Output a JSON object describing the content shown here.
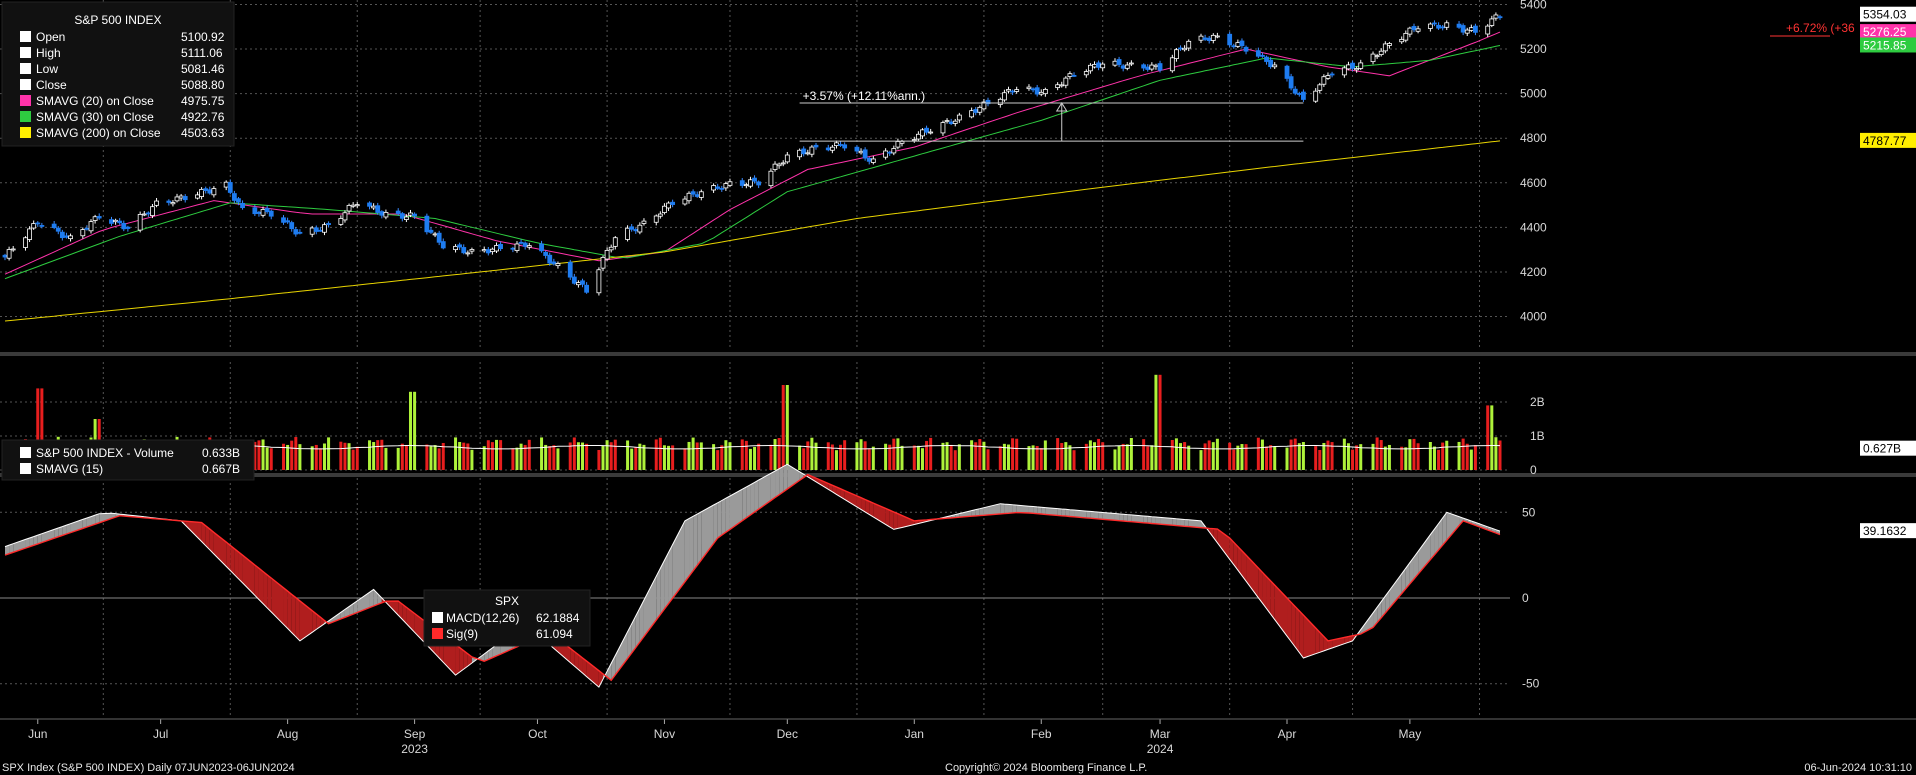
{
  "chart_data": {
    "type": "line",
    "title": "S&P 500 INDEX",
    "x_months": [
      "Jun",
      "Jul",
      "Aug",
      "Sep",
      "Oct",
      "Nov",
      "Dec",
      "Jan",
      "Feb",
      "Mar",
      "Apr",
      "May"
    ],
    "x_years": [
      "2023",
      "2024"
    ],
    "x_range": [
      "2023-06-07",
      "2024-06-06"
    ],
    "grid": true,
    "legend_position": "top-left",
    "price_panel": {
      "ylim": [
        3850,
        5420
      ],
      "yticks": [
        "4000",
        "4200",
        "4400",
        "4600",
        "4800",
        "5000",
        "5200",
        "5400"
      ],
      "legend": [
        {
          "label": "Open",
          "value": "5100.92",
          "color": "#ffffff"
        },
        {
          "label": "High",
          "value": "5111.06",
          "color": "#ffffff"
        },
        {
          "label": "Low",
          "value": "5081.46",
          "color": "#ffffff"
        },
        {
          "label": "Close",
          "value": "5088.80",
          "color": "#ffffff"
        },
        {
          "label": "SMAVG (20)  on Close",
          "value": "4975.75",
          "color": "#ff33aa"
        },
        {
          "label": "SMAVG (30)  on Close",
          "value": "4922.76",
          "color": "#2ecc40"
        },
        {
          "label": "SMAVG (200)  on Close",
          "value": "4503.63",
          "color": "#ffee00"
        }
      ],
      "last_labels": [
        {
          "value": "5354.03",
          "color": "#ffffff",
          "text_color": "#000000"
        },
        {
          "value": "5276.25",
          "color": "#ff33aa",
          "text_color": "#ffffff"
        },
        {
          "value": "5215.85",
          "color": "#2ecc40",
          "text_color": "#ffffff"
        },
        {
          "value": "4787.77",
          "color": "#ffee00",
          "text_color": "#000000"
        }
      ],
      "annotation": "+3.57% (+12.11%ann.)",
      "annotation_top_right": "+6.72% (+36",
      "series": [
        {
          "name": "Close",
          "points": [
            [
              "2023-06-07",
              4267
            ],
            [
              "2023-06-15",
              4426
            ],
            [
              "2023-06-23",
              4348
            ],
            [
              "2023-06-30",
              4450
            ],
            [
              "2023-07-07",
              4399
            ],
            [
              "2023-07-14",
              4505
            ],
            [
              "2023-07-21",
              4536
            ],
            [
              "2023-07-31",
              4589
            ],
            [
              "2023-08-04",
              4478
            ],
            [
              "2023-08-11",
              4464
            ],
            [
              "2023-08-18",
              4370
            ],
            [
              "2023-08-25",
              4406
            ],
            [
              "2023-09-01",
              4516
            ],
            [
              "2023-09-08",
              4457
            ],
            [
              "2023-09-15",
              4450
            ],
            [
              "2023-09-22",
              4320
            ],
            [
              "2023-09-29",
              4288
            ],
            [
              "2023-10-06",
              4308
            ],
            [
              "2023-10-13",
              4327
            ],
            [
              "2023-10-20",
              4224
            ],
            [
              "2023-10-27",
              4117
            ],
            [
              "2023-11-03",
              4358
            ],
            [
              "2023-11-10",
              4415
            ],
            [
              "2023-11-17",
              4514
            ],
            [
              "2023-11-24",
              4559
            ],
            [
              "2023-12-01",
              4594
            ],
            [
              "2023-12-08",
              4604
            ],
            [
              "2023-12-15",
              4719
            ],
            [
              "2023-12-22",
              4754
            ],
            [
              "2023-12-29",
              4770
            ],
            [
              "2024-01-05",
              4697
            ],
            [
              "2024-01-12",
              4784
            ],
            [
              "2024-01-19",
              4840
            ],
            [
              "2024-01-26",
              4891
            ],
            [
              "2024-02-02",
              4958
            ],
            [
              "2024-02-09",
              5027
            ],
            [
              "2024-02-16",
              5005
            ],
            [
              "2024-02-23",
              5089
            ],
            [
              "2024-03-01",
              5137
            ],
            [
              "2024-03-08",
              5124
            ],
            [
              "2024-03-15",
              5117
            ],
            [
              "2024-03-22",
              5234
            ],
            [
              "2024-03-28",
              5254
            ],
            [
              "2024-04-05",
              5204
            ],
            [
              "2024-04-12",
              5123
            ],
            [
              "2024-04-19",
              4967
            ],
            [
              "2024-04-26",
              5100
            ],
            [
              "2024-05-03",
              5128
            ],
            [
              "2024-05-10",
              5223
            ],
            [
              "2024-05-17",
              5303
            ],
            [
              "2024-05-24",
              5305
            ],
            [
              "2024-05-31",
              5278
            ],
            [
              "2024-06-06",
              5354
            ]
          ]
        },
        {
          "name": "SMAVG (20)",
          "points": [
            [
              "2023-06-07",
              4190
            ],
            [
              "2023-07-01",
              4390
            ],
            [
              "2023-07-28",
              4520
            ],
            [
              "2023-08-20",
              4460
            ],
            [
              "2023-09-12",
              4460
            ],
            [
              "2023-10-05",
              4340
            ],
            [
              "2023-10-30",
              4250
            ],
            [
              "2023-11-15",
              4290
            ],
            [
              "2023-12-01",
              4480
            ],
            [
              "2023-12-20",
              4660
            ],
            [
              "2024-01-15",
              4760
            ],
            [
              "2024-02-10",
              4920
            ],
            [
              "2024-03-10",
              5080
            ],
            [
              "2024-04-05",
              5200
            ],
            [
              "2024-04-25",
              5120
            ],
            [
              "2024-05-10",
              5080
            ],
            [
              "2024-05-31",
              5230
            ],
            [
              "2024-06-06",
              5276
            ]
          ]
        },
        {
          "name": "SMAVG (30)",
          "points": [
            [
              "2023-06-07",
              4170
            ],
            [
              "2023-07-05",
              4360
            ],
            [
              "2023-08-01",
              4510
            ],
            [
              "2023-08-25",
              4480
            ],
            [
              "2023-09-20",
              4440
            ],
            [
              "2023-10-15",
              4330
            ],
            [
              "2023-11-05",
              4260
            ],
            [
              "2023-11-25",
              4330
            ],
            [
              "2023-12-15",
              4560
            ],
            [
              "2024-01-15",
              4720
            ],
            [
              "2024-02-15",
              4880
            ],
            [
              "2024-03-15",
              5060
            ],
            [
              "2024-04-10",
              5160
            ],
            [
              "2024-05-01",
              5120
            ],
            [
              "2024-05-20",
              5150
            ],
            [
              "2024-06-06",
              5216
            ]
          ]
        },
        {
          "name": "SMAVG (200)",
          "points": [
            [
              "2023-06-07",
              3980
            ],
            [
              "2023-08-01",
              4080
            ],
            [
              "2023-10-01",
              4200
            ],
            [
              "2023-11-15",
              4290
            ],
            [
              "2024-01-01",
              4440
            ],
            [
              "2024-03-01",
              4580
            ],
            [
              "2024-04-15",
              4680
            ],
            [
              "2024-06-06",
              4788
            ]
          ]
        }
      ]
    },
    "volume_panel": {
      "legend": [
        {
          "label": "S&P 500 INDEX - Volume",
          "value": "0.633B",
          "color": "#ffffff"
        },
        {
          "label": "SMAVG (15)",
          "value": "0.667B",
          "color": "#ffffff"
        }
      ],
      "yticks": [
        "0",
        "1B",
        "2B"
      ],
      "last_label": "0.627B",
      "spikes": [
        [
          "2023-06-16",
          2.4
        ],
        [
          "2023-06-30",
          1.5
        ],
        [
          "2023-09-15",
          2.3
        ],
        [
          "2023-12-15",
          2.5
        ],
        [
          "2024-03-15",
          2.8
        ],
        [
          "2024-06-03",
          1.9
        ]
      ]
    },
    "macd_panel": {
      "legend_title": "SPX",
      "legend": [
        {
          "label": "MACD(12,26)",
          "value": "62.1884",
          "color": "#ffffff"
        },
        {
          "label": "Sig(9)",
          "value": "61.094",
          "color": "#ff2a2a"
        }
      ],
      "yticks": [
        "-50",
        "0",
        "50"
      ],
      "last_label": "39.1632",
      "macd_points": [
        [
          "2023-06-07",
          30
        ],
        [
          "2023-07-01",
          50
        ],
        [
          "2023-07-20",
          45
        ],
        [
          "2023-08-18",
          -25
        ],
        [
          "2023-09-05",
          5
        ],
        [
          "2023-09-25",
          -45
        ],
        [
          "2023-10-12",
          -15
        ],
        [
          "2023-10-30",
          -52
        ],
        [
          "2023-11-20",
          45
        ],
        [
          "2023-12-15",
          78
        ],
        [
          "2024-01-10",
          40
        ],
        [
          "2024-02-05",
          55
        ],
        [
          "2024-03-25",
          45
        ],
        [
          "2024-04-19",
          -35
        ],
        [
          "2024-05-01",
          -25
        ],
        [
          "2024-05-24",
          50
        ],
        [
          "2024-06-06",
          39
        ]
      ],
      "signal_points": [
        [
          "2023-06-07",
          25
        ],
        [
          "2023-07-05",
          48
        ],
        [
          "2023-07-25",
          44
        ],
        [
          "2023-08-25",
          -15
        ],
        [
          "2023-09-10",
          0
        ],
        [
          "2023-10-01",
          -38
        ],
        [
          "2023-10-18",
          -20
        ],
        [
          "2023-11-02",
          -48
        ],
        [
          "2023-11-28",
          35
        ],
        [
          "2023-12-20",
          72
        ],
        [
          "2024-01-15",
          45
        ],
        [
          "2024-02-10",
          50
        ],
        [
          "2024-03-30",
          40
        ],
        [
          "2024-04-25",
          -25
        ],
        [
          "2024-05-05",
          -20
        ],
        [
          "2024-05-28",
          45
        ],
        [
          "2024-06-06",
          37
        ]
      ]
    },
    "footer": {
      "left": "SPX Index (S&P 500 INDEX)  Daily 07JUN2023-06JUN2024",
      "center": "Copyright© 2024 Bloomberg Finance L.P.",
      "right": "06-Jun-2024 10:31:10"
    }
  }
}
